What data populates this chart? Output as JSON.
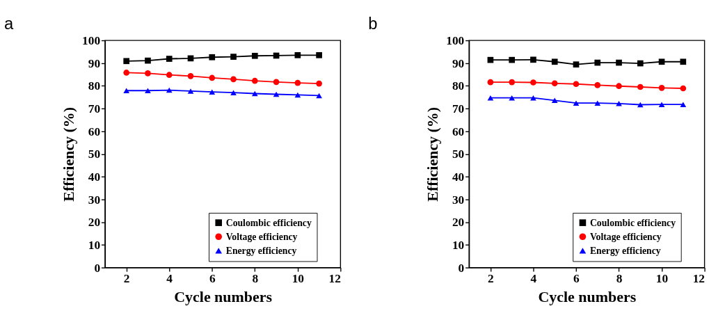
{
  "chart_data": [
    {
      "type": "line",
      "title": "a",
      "xlabel": "Cycle numbers",
      "ylabel": "Efficiency (%)",
      "x": [
        2,
        3,
        4,
        5,
        6,
        7,
        8,
        9,
        10,
        11
      ],
      "xlim": [
        1,
        12
      ],
      "xticks": [
        2,
        4,
        6,
        8,
        10,
        12
      ],
      "ylim": [
        0,
        100
      ],
      "yticks": [
        0,
        10,
        20,
        30,
        40,
        50,
        60,
        70,
        80,
        90,
        100
      ],
      "legend": "bottom right",
      "grid": false,
      "line_style": "solid",
      "series": [
        {
          "name": "Coulombic efficiency",
          "color": "#000000",
          "marker": "square",
          "values": [
            90.9,
            91.1,
            91.9,
            92.1,
            92.6,
            92.8,
            93.2,
            93.3,
            93.5,
            93.5
          ]
        },
        {
          "name": "Voltage efficiency",
          "color": "#ff0000",
          "marker": "circle",
          "values": [
            85.8,
            85.5,
            84.8,
            84.3,
            83.5,
            82.9,
            82.2,
            81.7,
            81.3,
            81.0
          ]
        },
        {
          "name": "Energy efficiency",
          "color": "#0000ff",
          "marker": "triangle",
          "values": [
            77.9,
            77.9,
            78.1,
            77.7,
            77.3,
            77.0,
            76.6,
            76.3,
            76.0,
            75.7
          ]
        }
      ]
    },
    {
      "type": "line",
      "title": "b",
      "xlabel": "Cycle numbers",
      "ylabel": "Efficiency (%)",
      "x": [
        2,
        3,
        4,
        5,
        6,
        7,
        8,
        9,
        10,
        11
      ],
      "xlim": [
        1,
        12
      ],
      "xticks": [
        2,
        4,
        6,
        8,
        10,
        12
      ],
      "ylim": [
        0,
        100
      ],
      "yticks": [
        0,
        10,
        20,
        30,
        40,
        50,
        60,
        70,
        80,
        90,
        100
      ],
      "legend": "bottom right",
      "grid": false,
      "line_style": "solid",
      "series": [
        {
          "name": "Coulombic efficiency",
          "color": "#000000",
          "marker": "square",
          "values": [
            91.4,
            91.4,
            91.5,
            90.6,
            89.4,
            90.2,
            90.2,
            89.9,
            90.6,
            90.6
          ]
        },
        {
          "name": "Voltage efficiency",
          "color": "#ff0000",
          "marker": "circle",
          "values": [
            81.6,
            81.6,
            81.5,
            81.1,
            80.8,
            80.3,
            79.9,
            79.5,
            79.1,
            78.9
          ]
        },
        {
          "name": "Energy efficiency",
          "color": "#0000ff",
          "marker": "triangle",
          "values": [
            74.7,
            74.7,
            74.7,
            73.6,
            72.4,
            72.4,
            72.2,
            71.7,
            71.8,
            71.8
          ]
        }
      ]
    }
  ]
}
